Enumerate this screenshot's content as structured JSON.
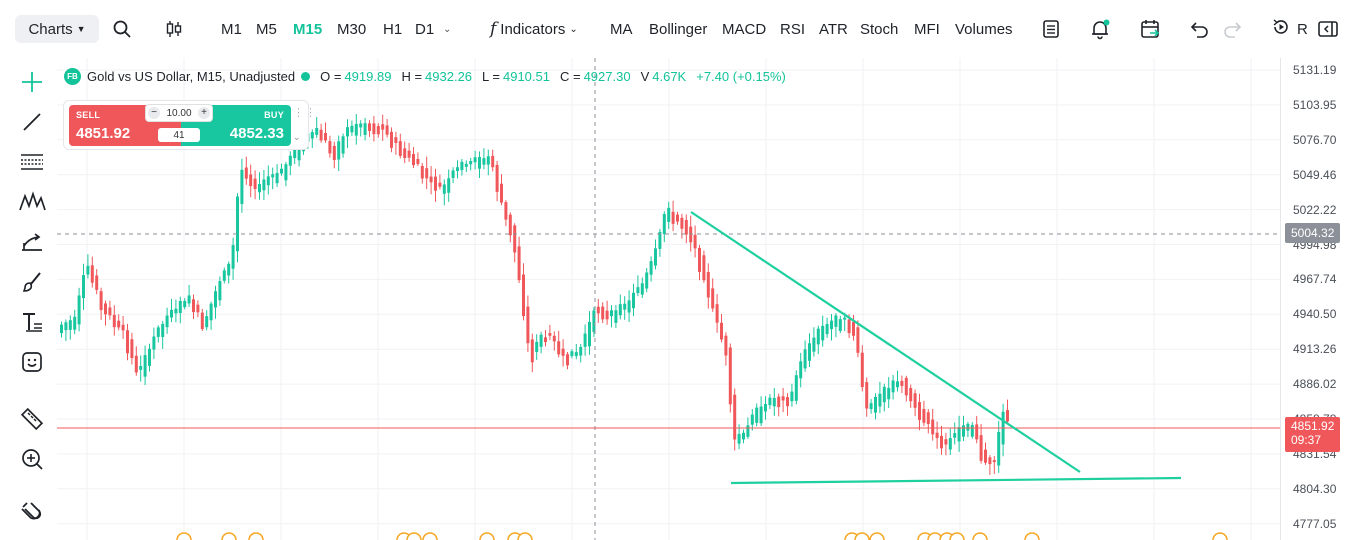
{
  "toolbar": {
    "charts_label": "Charts",
    "timeframes": [
      "M1",
      "M5",
      "M15",
      "M30",
      "H1",
      "D1"
    ],
    "active_timeframe": "M15",
    "indicators_label": "Indicators",
    "indicator_shortcuts": [
      "MA",
      "Bollinger",
      "MACD",
      "RSI",
      "ATR",
      "Stoch",
      "MFI",
      "Volumes"
    ],
    "cut_label": "R"
  },
  "symbol": {
    "badge": "FB",
    "title": "Gold vs US Dollar, M15, Unadjusted",
    "open_label": "O =",
    "open": "4919.89",
    "high_label": "H =",
    "high": "4932.26",
    "low_label": "L =",
    "low": "4910.51",
    "close_label": "C =",
    "close": "4927.30",
    "volume_label": "V",
    "volume": "4.67K",
    "change": "+7.40 (+0.15%)"
  },
  "trade": {
    "sell_label": "SELL",
    "sell_price": "4851.92",
    "buy_label": "BUY",
    "buy_price": "4852.33",
    "quantity": "10.00",
    "spread": "41"
  },
  "axis": {
    "ticks": [
      "5131.19",
      "5103.95",
      "5076.70",
      "5049.46",
      "5022.22",
      "4994.98",
      "4967.74",
      "4940.50",
      "4913.26",
      "4886.02",
      "4858.78",
      "4831.54",
      "4804.30",
      "4777.05"
    ],
    "crosshair_price": "5004.32",
    "current_price": "4851.92",
    "countdown": "09:37"
  },
  "colors": {
    "up": "#18c79f",
    "down": "#f0575a",
    "accent": "#13c39a",
    "trendline": "#1ecf9f",
    "event_marker": "#f5a623"
  },
  "icons": [
    "search-icon",
    "candlestick-icon",
    "indicators-icon",
    "layout-icon",
    "alert-icon",
    "calendar-icon",
    "undo-icon",
    "redo-icon",
    "replay-icon",
    "panel-icon",
    "crosshair-icon",
    "line-icon",
    "fib-icon",
    "pattern-icon",
    "projection-icon",
    "brush-icon",
    "text-icon",
    "emoji-icon",
    "ruler-icon",
    "zoom-in-icon",
    "magnet-icon"
  ]
}
